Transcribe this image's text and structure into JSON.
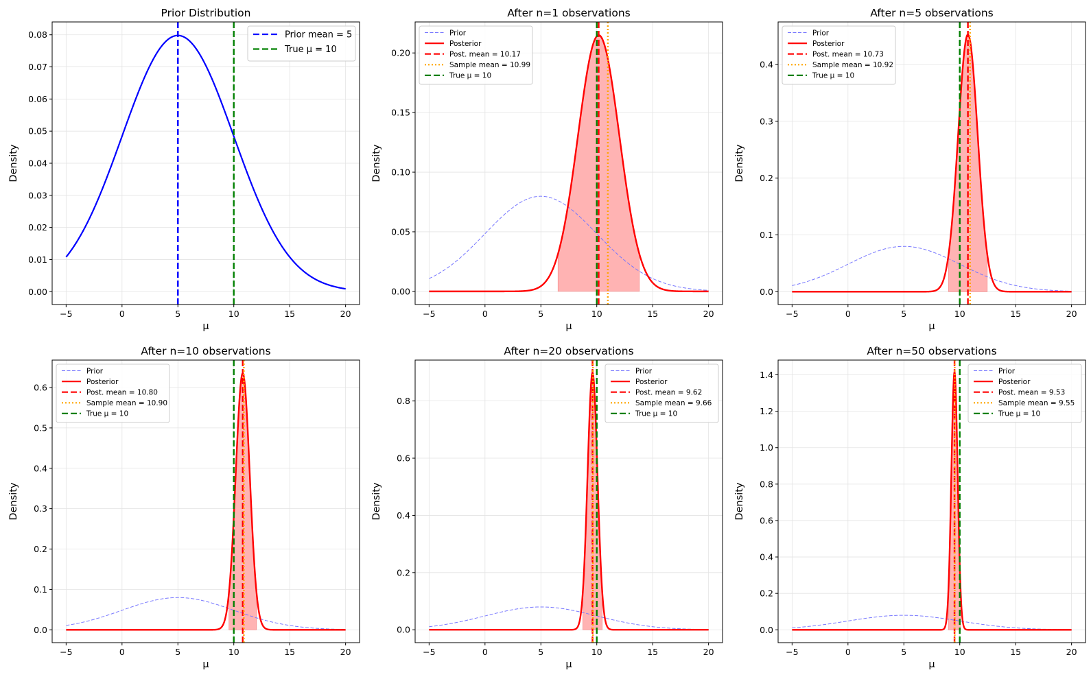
{
  "colors": {
    "prior_solid": "#0000ff",
    "prior_faint": "#7777ff",
    "posterior": "#ff0000",
    "fill": "#ffb3b3",
    "sample": "#ffa500",
    "true": "#008000",
    "grid": "#e3e3e3"
  },
  "chart_data": [
    {
      "type": "line",
      "title": "Prior Distribution",
      "xlabel": "μ",
      "ylabel": "Density",
      "xlim": [
        -6.25,
        21.25
      ],
      "ylim": [
        -0.004,
        0.084
      ],
      "xticks": [
        -5,
        0,
        5,
        10,
        15,
        20
      ],
      "xtick_labels": [
        "−5",
        "0",
        "5",
        "10",
        "15",
        "20"
      ],
      "yticks": [
        0,
        0.01,
        0.02,
        0.03,
        0.04,
        0.05,
        0.06,
        0.07,
        0.08
      ],
      "ytick_labels": [
        "0.00",
        "0.01",
        "0.02",
        "0.03",
        "0.04",
        "0.05",
        "0.06",
        "0.07",
        "0.08"
      ],
      "grid": true,
      "prior": {
        "mean": 5,
        "sd": 5,
        "x_range": [
          -5,
          20
        ]
      },
      "posterior": null,
      "fill_range": null,
      "vlines": [
        {
          "key": "prior_mean",
          "x": 5,
          "style": "dashed",
          "color_key": "prior_solid"
        },
        {
          "key": "true_mu",
          "x": 10,
          "style": "dashed",
          "color_key": "true"
        }
      ],
      "legend": {
        "location": "upper right",
        "size": "large",
        "entries": [
          {
            "label": "Prior mean = 5",
            "style": "dashed",
            "color_key": "prior_solid"
          },
          {
            "label": "True μ = 10",
            "style": "dashed",
            "color_key": "true"
          }
        ]
      }
    },
    {
      "type": "line",
      "title": "After n=1 observations",
      "xlabel": "μ",
      "ylabel": "Density",
      "xlim": [
        -6.25,
        21.25
      ],
      "ylim": [
        -0.011,
        0.226
      ],
      "xticks": [
        -5,
        0,
        5,
        10,
        15,
        20
      ],
      "xtick_labels": [
        "−5",
        "0",
        "5",
        "10",
        "15",
        "20"
      ],
      "yticks": [
        0,
        0.05,
        0.1,
        0.15,
        0.2
      ],
      "ytick_labels": [
        "0.00",
        "0.05",
        "0.10",
        "0.15",
        "0.20"
      ],
      "grid": true,
      "prior": {
        "mean": 5,
        "sd": 5,
        "x_range": [
          -5,
          20
        ]
      },
      "posterior": {
        "mean": 10.17,
        "sd": 1.856,
        "x_range": [
          -5,
          20
        ]
      },
      "fill_range": [
        6.53,
        13.81
      ],
      "vlines": [
        {
          "key": "post_mean",
          "x": 10.17,
          "style": "dashed",
          "color_key": "posterior"
        },
        {
          "key": "sample_mean",
          "x": 10.99,
          "style": "dotted",
          "color_key": "sample"
        },
        {
          "key": "true_mu",
          "x": 10,
          "style": "dashed",
          "color_key": "true"
        }
      ],
      "legend": {
        "location": "upper left",
        "size": "small",
        "entries": [
          {
            "label": "Prior",
            "style": "thin-dashed",
            "color_key": "prior_faint"
          },
          {
            "label": "Posterior",
            "style": "solid",
            "color_key": "posterior"
          },
          {
            "label": "Post. mean = 10.17",
            "style": "dashed",
            "color_key": "posterior"
          },
          {
            "label": "Sample mean = 10.99",
            "style": "dotted",
            "color_key": "sample"
          },
          {
            "label": "True μ = 10",
            "style": "dashed",
            "color_key": "true"
          }
        ]
      }
    },
    {
      "type": "line",
      "title": "After n=5 observations",
      "xlabel": "μ",
      "ylabel": "Density",
      "xlim": [
        -6.25,
        21.25
      ],
      "ylim": [
        -0.0226,
        0.475
      ],
      "xticks": [
        -5,
        0,
        5,
        10,
        15,
        20
      ],
      "xtick_labels": [
        "−5",
        "0",
        "5",
        "10",
        "15",
        "20"
      ],
      "yticks": [
        0,
        0.1,
        0.2,
        0.3,
        0.4
      ],
      "ytick_labels": [
        "0.0",
        "0.1",
        "0.2",
        "0.3",
        "0.4"
      ],
      "grid": true,
      "prior": {
        "mean": 5,
        "sd": 5,
        "x_range": [
          -5,
          20
        ]
      },
      "posterior": {
        "mean": 10.73,
        "sd": 0.881,
        "x_range": [
          -5,
          20
        ]
      },
      "fill_range": [
        9.0,
        12.46
      ],
      "vlines": [
        {
          "key": "post_mean",
          "x": 10.73,
          "style": "dashed",
          "color_key": "posterior"
        },
        {
          "key": "sample_mean",
          "x": 10.92,
          "style": "dotted",
          "color_key": "sample"
        },
        {
          "key": "true_mu",
          "x": 10,
          "style": "dashed",
          "color_key": "true"
        }
      ],
      "legend": {
        "location": "upper left",
        "size": "small",
        "entries": [
          {
            "label": "Prior",
            "style": "thin-dashed",
            "color_key": "prior_faint"
          },
          {
            "label": "Posterior",
            "style": "solid",
            "color_key": "posterior"
          },
          {
            "label": "Post. mean = 10.73",
            "style": "dashed",
            "color_key": "posterior"
          },
          {
            "label": "Sample mean = 10.92",
            "style": "dotted",
            "color_key": "sample"
          },
          {
            "label": "True μ = 10",
            "style": "dashed",
            "color_key": "true"
          }
        ]
      }
    },
    {
      "type": "line",
      "title": "After n=10 observations",
      "xlabel": "μ",
      "ylabel": "Density",
      "xlim": [
        -6.25,
        21.25
      ],
      "ylim": [
        -0.0318,
        0.668
      ],
      "xticks": [
        -5,
        0,
        5,
        10,
        15,
        20
      ],
      "xtick_labels": [
        "−5",
        "0",
        "5",
        "10",
        "15",
        "20"
      ],
      "yticks": [
        0,
        0.1,
        0.2,
        0.3,
        0.4,
        0.5,
        0.6
      ],
      "ytick_labels": [
        "0.0",
        "0.1",
        "0.2",
        "0.3",
        "0.4",
        "0.5",
        "0.6"
      ],
      "grid": true,
      "prior": {
        "mean": 5,
        "sd": 5,
        "x_range": [
          -5,
          20
        ]
      },
      "posterior": {
        "mean": 10.8,
        "sd": 0.628,
        "x_range": [
          -5,
          20
        ]
      },
      "fill_range": [
        9.57,
        12.03
      ],
      "vlines": [
        {
          "key": "post_mean",
          "x": 10.8,
          "style": "dashed",
          "color_key": "posterior"
        },
        {
          "key": "sample_mean",
          "x": 10.9,
          "style": "dotted",
          "color_key": "sample"
        },
        {
          "key": "true_mu",
          "x": 10,
          "style": "dashed",
          "color_key": "true"
        }
      ],
      "legend": {
        "location": "upper left",
        "size": "small",
        "entries": [
          {
            "label": "Prior",
            "style": "thin-dashed",
            "color_key": "prior_faint"
          },
          {
            "label": "Posterior",
            "style": "solid",
            "color_key": "posterior"
          },
          {
            "label": "Post. mean = 10.80",
            "style": "dashed",
            "color_key": "posterior"
          },
          {
            "label": "Sample mean = 10.90",
            "style": "dotted",
            "color_key": "sample"
          },
          {
            "label": "True μ = 10",
            "style": "dashed",
            "color_key": "true"
          }
        ]
      }
    },
    {
      "type": "line",
      "title": "After n=20 observations",
      "xlabel": "μ",
      "ylabel": "Density",
      "xlim": [
        -6.25,
        21.25
      ],
      "ylim": [
        -0.045,
        0.943
      ],
      "xticks": [
        -5,
        0,
        5,
        10,
        15,
        20
      ],
      "xtick_labels": [
        "−5",
        "0",
        "5",
        "10",
        "15",
        "20"
      ],
      "yticks": [
        0,
        0.2,
        0.4,
        0.6,
        0.8
      ],
      "ytick_labels": [
        "0.0",
        "0.2",
        "0.4",
        "0.6",
        "0.8"
      ],
      "grid": true,
      "prior": {
        "mean": 5,
        "sd": 5,
        "x_range": [
          -5,
          20
        ]
      },
      "posterior": {
        "mean": 9.62,
        "sd": 0.444,
        "x_range": [
          -5,
          20
        ]
      },
      "fill_range": [
        8.75,
        10.49
      ],
      "vlines": [
        {
          "key": "post_mean",
          "x": 9.62,
          "style": "dashed",
          "color_key": "posterior"
        },
        {
          "key": "sample_mean",
          "x": 9.66,
          "style": "dotted",
          "color_key": "sample"
        },
        {
          "key": "true_mu",
          "x": 10,
          "style": "dashed",
          "color_key": "true"
        }
      ],
      "legend": {
        "location": "upper right",
        "size": "small",
        "entries": [
          {
            "label": "Prior",
            "style": "thin-dashed",
            "color_key": "prior_faint"
          },
          {
            "label": "Posterior",
            "style": "solid",
            "color_key": "posterior"
          },
          {
            "label": "Post. mean = 9.62",
            "style": "dashed",
            "color_key": "posterior"
          },
          {
            "label": "Sample mean = 9.66",
            "style": "dotted",
            "color_key": "sample"
          },
          {
            "label": "True μ = 10",
            "style": "dashed",
            "color_key": "true"
          }
        ]
      }
    },
    {
      "type": "line",
      "title": "After n=50 observations",
      "xlabel": "μ",
      "ylabel": "Density",
      "xlim": [
        -6.25,
        21.25
      ],
      "ylim": [
        -0.0705,
        1.481
      ],
      "xticks": [
        -5,
        0,
        5,
        10,
        15,
        20
      ],
      "xtick_labels": [
        "−5",
        "0",
        "5",
        "10",
        "15",
        "20"
      ],
      "yticks": [
        0,
        0.2,
        0.4,
        0.6,
        0.8,
        1.0,
        1.2,
        1.4
      ],
      "ytick_labels": [
        "0.0",
        "0.2",
        "0.4",
        "0.6",
        "0.8",
        "1.0",
        "1.2",
        "1.4"
      ],
      "grid": true,
      "prior": {
        "mean": 5,
        "sd": 5,
        "x_range": [
          -5,
          20
        ]
      },
      "posterior": {
        "mean": 9.53,
        "sd": 0.282,
        "x_range": [
          -5,
          20
        ]
      },
      "fill_range": [
        8.98,
        10.08
      ],
      "vlines": [
        {
          "key": "post_mean",
          "x": 9.53,
          "style": "dashed",
          "color_key": "posterior"
        },
        {
          "key": "sample_mean",
          "x": 9.55,
          "style": "dotted",
          "color_key": "sample"
        },
        {
          "key": "true_mu",
          "x": 10,
          "style": "dashed",
          "color_key": "true"
        }
      ],
      "legend": {
        "location": "upper right",
        "size": "small",
        "entries": [
          {
            "label": "Prior",
            "style": "thin-dashed",
            "color_key": "prior_faint"
          },
          {
            "label": "Posterior",
            "style": "solid",
            "color_key": "posterior"
          },
          {
            "label": "Post. mean = 9.53",
            "style": "dashed",
            "color_key": "posterior"
          },
          {
            "label": "Sample mean = 9.55",
            "style": "dotted",
            "color_key": "sample"
          },
          {
            "label": "True μ = 10",
            "style": "dashed",
            "color_key": "true"
          }
        ]
      }
    }
  ]
}
